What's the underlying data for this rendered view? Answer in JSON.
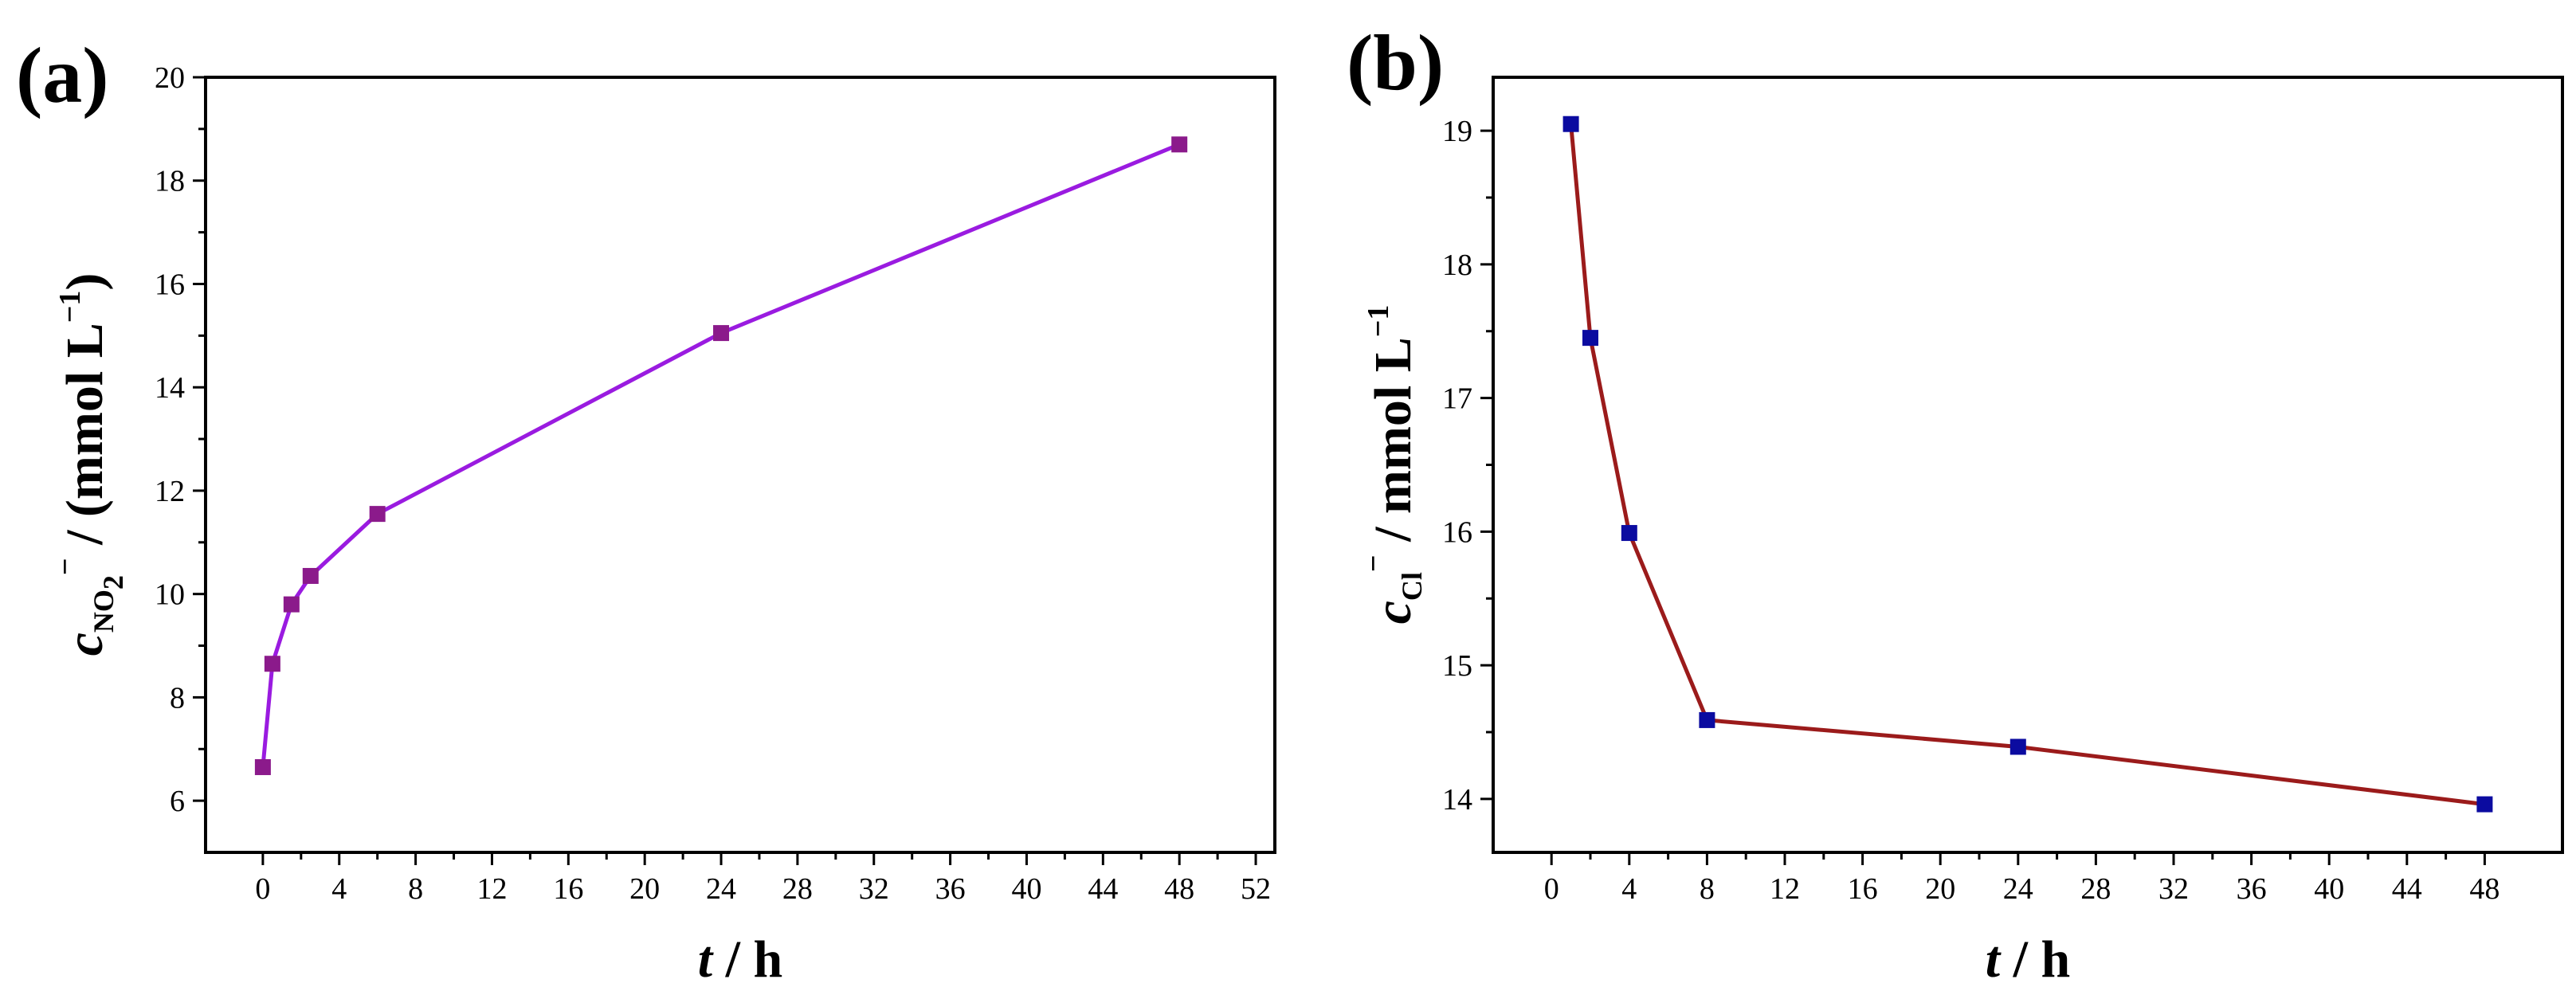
{
  "chart_data": [
    {
      "type": "line",
      "panel_label": "(a)",
      "x": [
        0,
        0.5,
        1.5,
        2.5,
        6,
        24,
        48
      ],
      "series": [
        {
          "name": "NO2-",
          "values": [
            6.65,
            8.65,
            9.8,
            10.35,
            11.55,
            15.05,
            18.7
          ],
          "line_color": "#9A1BE0",
          "marker_color": "#8B1A8B",
          "marker": "square"
        }
      ],
      "xlim": [
        -3,
        53
      ],
      "ylim": [
        5,
        20
      ],
      "xticks": [
        0,
        4,
        8,
        12,
        16,
        20,
        24,
        28,
        32,
        36,
        40,
        44,
        48,
        52
      ],
      "xtick_labels": [
        "0",
        "4",
        "8",
        "12",
        "16",
        "20",
        "24",
        "28",
        "32",
        "36",
        "40",
        "44",
        "48",
        "52"
      ],
      "yticks": [
        6,
        8,
        10,
        12,
        14,
        16,
        18,
        20
      ],
      "ytick_labels": [
        "6",
        "8",
        "10",
        "12",
        "14",
        "16",
        "18",
        "20"
      ],
      "xlabel": {
        "var": "t",
        "sep": " / ",
        "unit": "h"
      },
      "ylabel": {
        "var": "c",
        "sub": "NO",
        "sub2": "2",
        "sup": "−",
        "unit_open": " / (mmol L",
        "unit_sup": "−1",
        "unit_close": ")"
      }
    },
    {
      "type": "line",
      "panel_label": "(b)",
      "x": [
        1,
        2,
        4,
        8,
        24,
        48
      ],
      "series": [
        {
          "name": "Cl-",
          "values": [
            19.05,
            17.45,
            15.99,
            14.59,
            14.39,
            13.96
          ],
          "line_color": "#9B1B1B",
          "marker_color": "#0B0BA0",
          "marker": "square"
        }
      ],
      "xlim": [
        -3,
        52
      ],
      "ylim": [
        13.6,
        19.4
      ],
      "xticks": [
        0,
        4,
        8,
        12,
        16,
        20,
        24,
        28,
        32,
        36,
        40,
        44,
        48
      ],
      "xtick_labels": [
        "0",
        "4",
        "8",
        "12",
        "16",
        "20",
        "24",
        "28",
        "32",
        "36",
        "40",
        "44",
        "48"
      ],
      "yticks": [
        14,
        15,
        16,
        17,
        18,
        19
      ],
      "ytick_labels": [
        "14",
        "15",
        "16",
        "17",
        "18",
        "19"
      ],
      "xlabel": {
        "var": "t",
        "sep": " / ",
        "unit": "h"
      },
      "ylabel": {
        "var": "c",
        "sub": "Cl",
        "sup": "−",
        "unit_open": " / mmol L",
        "unit_sup": "−1",
        "unit_close": ""
      }
    }
  ]
}
